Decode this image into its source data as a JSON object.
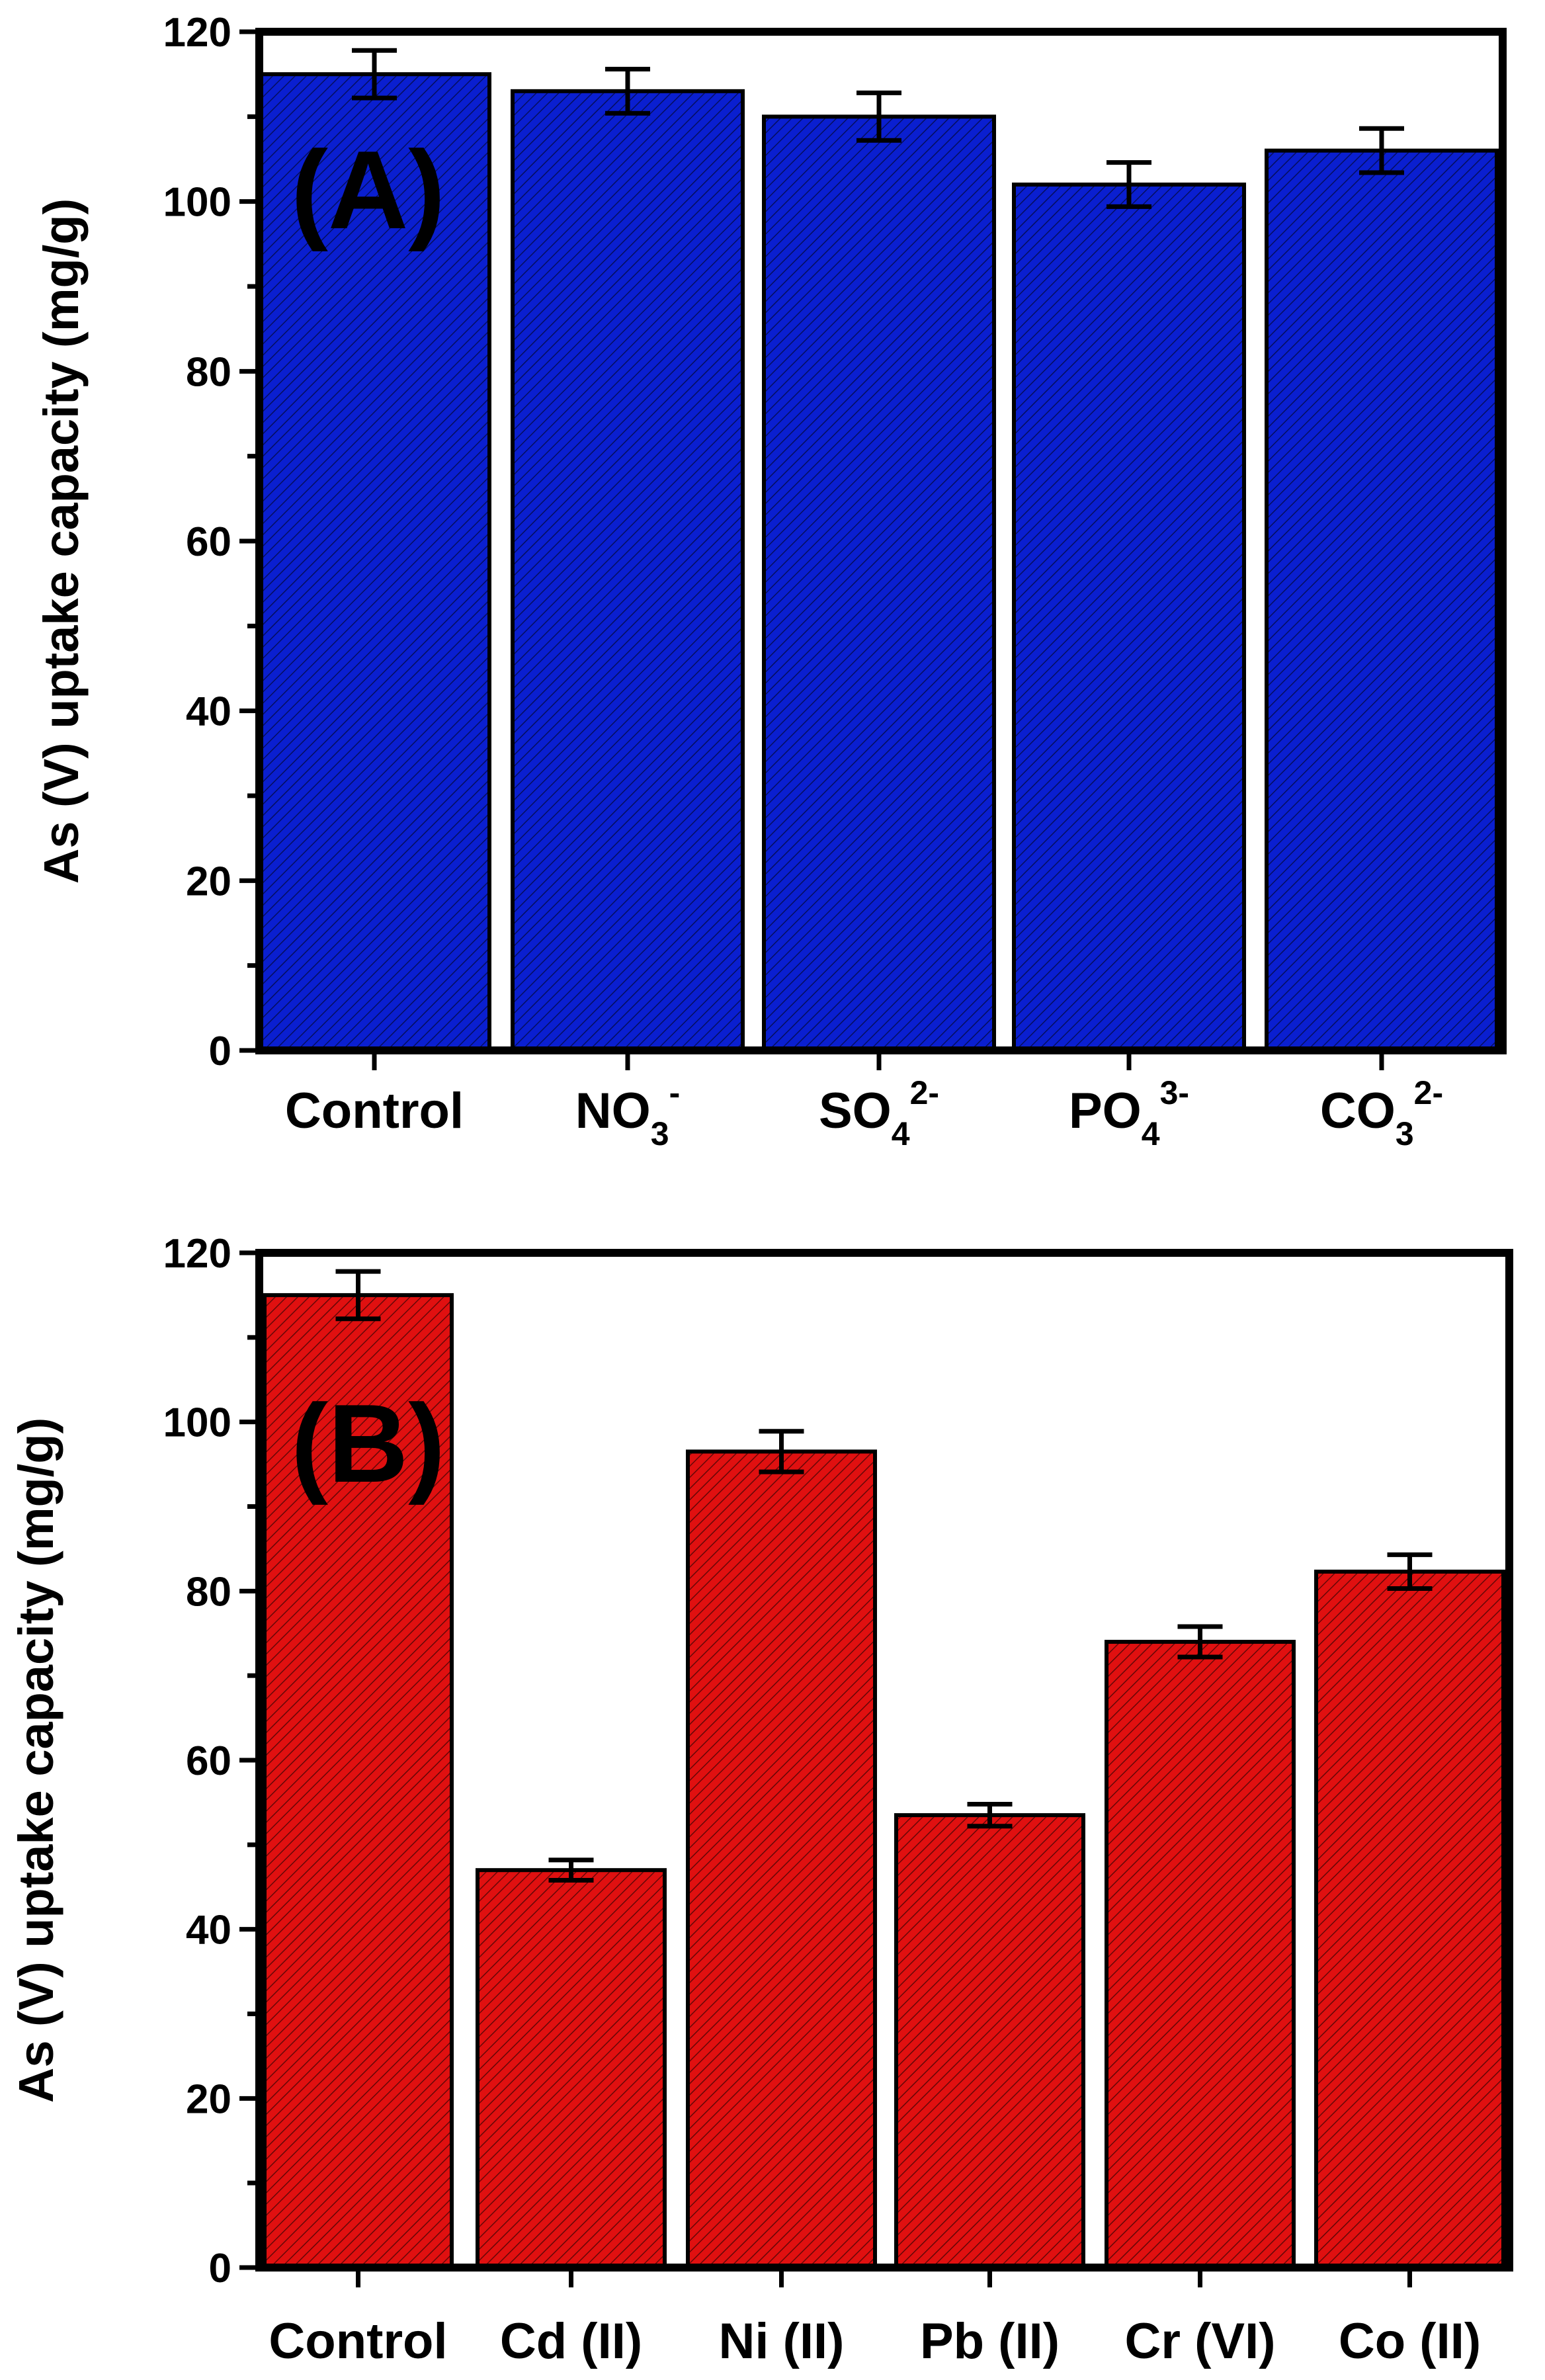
{
  "colors": {
    "panelA_bar": "#0a1fd0",
    "panelB_bar": "#e01010",
    "hatch": "#000000"
  },
  "chart_data": [
    {
      "type": "bar",
      "panel_label": "(A)",
      "ylabel": "As (V) uptake capacity (mg/g)",
      "ylim": [
        0,
        120
      ],
      "yticks": [
        0,
        20,
        40,
        60,
        80,
        100,
        120
      ],
      "categories": [
        {
          "base": "Control",
          "sub": "",
          "sup": ""
        },
        {
          "base": "NO",
          "sub": "3",
          "sup": "-"
        },
        {
          "base": "SO",
          "sub": "4",
          "sup": "2-"
        },
        {
          "base": "PO",
          "sub": "4",
          "sup": "3-"
        },
        {
          "base": "CO",
          "sub": "3",
          "sup": "2-"
        }
      ],
      "values": [
        115,
        113,
        110,
        102,
        106
      ],
      "errors": [
        2.8,
        2.6,
        2.8,
        2.6,
        2.6
      ]
    },
    {
      "type": "bar",
      "panel_label": "(B)",
      "ylabel": "As (V) uptake capacity (mg/g)",
      "ylim": [
        0,
        120
      ],
      "yticks": [
        0,
        20,
        40,
        60,
        80,
        100,
        120
      ],
      "categories": [
        {
          "base": "Control",
          "sub": "",
          "sup": ""
        },
        {
          "base": "Cd (II)",
          "sub": "",
          "sup": ""
        },
        {
          "base": "Ni (II)",
          "sub": "",
          "sup": ""
        },
        {
          "base": "Pb (II)",
          "sub": "",
          "sup": ""
        },
        {
          "base": "Cr (VI)",
          "sub": "",
          "sup": ""
        },
        {
          "base": "Co (II)",
          "sub": "",
          "sup": ""
        }
      ],
      "values": [
        115,
        47,
        96.5,
        53.5,
        74,
        82.3
      ],
      "errors": [
        2.8,
        1.2,
        2.4,
        1.3,
        1.8,
        2.0
      ]
    }
  ]
}
